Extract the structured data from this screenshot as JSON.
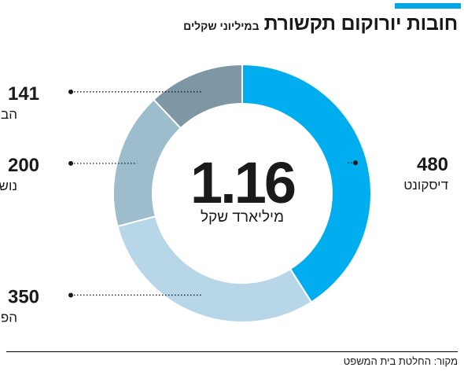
{
  "title": "חובות יורוקום תקשורת",
  "subtitle": "במיליוני שקלים",
  "total": {
    "value": "1.16",
    "unit": "מיליארד שקל"
  },
  "source": "מקור: החלטת בית המשפט",
  "colors": {
    "accent": "#00a7e6"
  },
  "chart_data": {
    "type": "pie",
    "variant": "donut",
    "title": "חובות יורוקום תקשורת",
    "subtitle": "במיליוני שקלים",
    "unit": "במיליוני שקלים",
    "center_label": {
      "value": "1.16",
      "unit": "מיליארד שקל"
    },
    "slices": [
      {
        "name": "דיסקונט",
        "value": 480,
        "color": "#00aeef",
        "label_side": "right"
      },
      {
        "name": "הפועלים",
        "value": 350,
        "color": "#b7d7e8",
        "label_side": "left"
      },
      {
        "name": "נושים אחרים",
        "value": 200,
        "color": "#9dbccc",
        "label_side": "left"
      },
      {
        "name": "הבינלאומי",
        "value": 141,
        "color": "#7e97a5",
        "label_side": "left"
      }
    ]
  }
}
